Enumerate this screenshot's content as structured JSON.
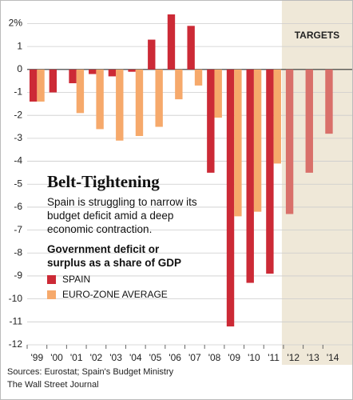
{
  "chart_data": {
    "type": "bar",
    "title": "Belt-Tightening",
    "subtitle": "Spain is struggling to narrow its budget deficit amid a deep economic contraction.",
    "y_label": "Government deficit or surplus as a share of GDP",
    "categories": [
      "'99",
      "'00",
      "'01",
      "'02",
      "'03",
      "'04",
      "'05",
      "'06",
      "'07",
      "'08",
      "'09",
      "'10",
      "'11",
      "'12",
      "'13",
      "'14"
    ],
    "series": [
      {
        "name": "SPAIN",
        "color": "#cc2a36",
        "target_color": "#d9706a",
        "values": [
          -1.4,
          -1.0,
          -0.6,
          -0.2,
          -0.3,
          -0.1,
          1.3,
          2.4,
          1.9,
          -4.5,
          -11.2,
          -9.3,
          -8.9,
          -6.3,
          -4.5,
          -2.8
        ]
      },
      {
        "name": "EURO-ZONE AVERAGE",
        "color": "#f6a96b",
        "target_color": "#f6a96b",
        "values": [
          -1.4,
          null,
          -1.9,
          -2.6,
          -3.1,
          -2.9,
          -2.5,
          -1.3,
          -0.7,
          -2.1,
          -6.4,
          -6.2,
          -4.1,
          null,
          null,
          null
        ]
      }
    ],
    "highlight": {
      "label": "TARGETS",
      "from": "'12",
      "color": "#efe8d8"
    },
    "ylim": [
      -12,
      2.4
    ],
    "yticks": [
      {
        "value": 2,
        "label": "2%"
      },
      1,
      0,
      -1,
      -2,
      -3,
      -4,
      -5,
      -6,
      -7,
      -8,
      -9,
      -10,
      -11,
      -12
    ],
    "grid": true,
    "notes": [
      "Sources: Eurostat; Spain's Budget Ministry",
      "The Wall Street Journal"
    ]
  }
}
